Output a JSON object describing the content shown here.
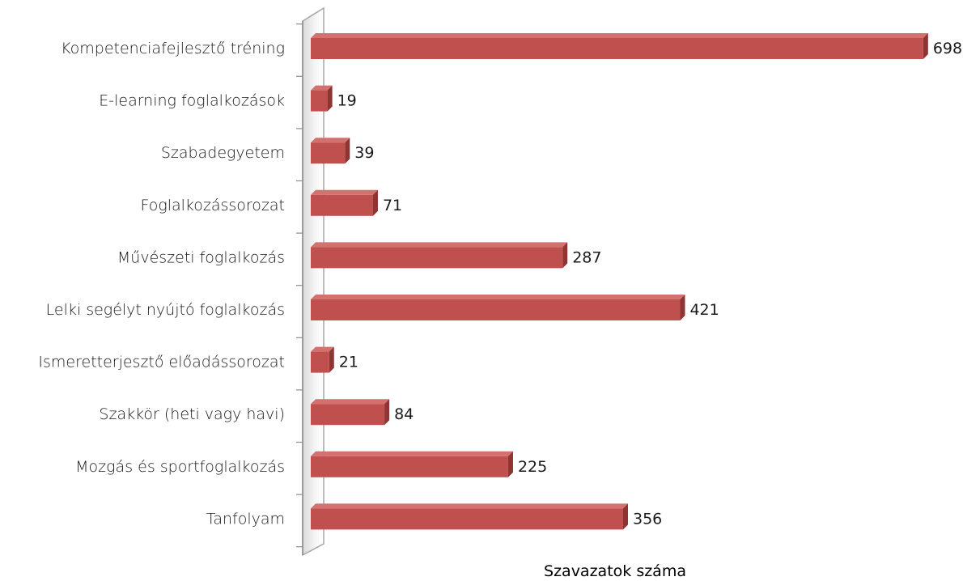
{
  "chart_data": {
    "type": "bar",
    "orientation": "horizontal",
    "three_d": true,
    "categories": [
      "Kompetenciafejlesztő tréning",
      "E-learning foglalkozások",
      "Szabadegyetem",
      "Foglalkozássorozat",
      "Művészeti foglalkozás",
      "Lelki segélyt nyújtó foglalkozás",
      "Ismeretterjesztő előadássorozat",
      "Szakkör (heti vagy havi)",
      "Mozgás és sportfoglalkozás",
      "Tanfolyam"
    ],
    "values": [
      698,
      19,
      39,
      71,
      287,
      421,
      21,
      84,
      225,
      356
    ],
    "xlabel": "Szavazatok száma",
    "ylabel": "",
    "xlim": [
      0,
      700
    ],
    "grid": false,
    "legend": "none",
    "colors": {
      "bar_front": "#c0504d",
      "bar_top": "#d2716e",
      "bar_side": "#8e3432",
      "axis_wall": "#bfbfbf"
    }
  }
}
